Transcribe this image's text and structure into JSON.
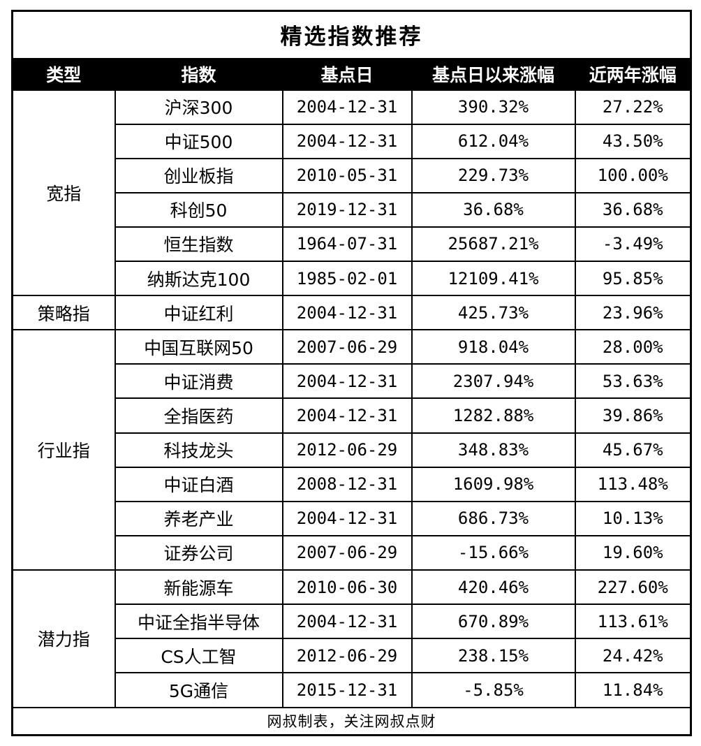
{
  "title": "精选指数推荐",
  "footer": "网叔制表，关注网叔点财",
  "header": {
    "columns": [
      "类型",
      "指数",
      "基点日",
      "基点日以来涨幅",
      "近两年涨幅"
    ]
  },
  "groups": [
    {
      "type": "宽指",
      "rows": [
        {
          "index": "沪深300",
          "base_date": "2004-12-31",
          "gain_since_base": "390.32%",
          "gain_two_years": "27.22%"
        },
        {
          "index": "中证500",
          "base_date": "2004-12-31",
          "gain_since_base": "612.04%",
          "gain_two_years": "43.50%"
        },
        {
          "index": "创业板指",
          "base_date": "2010-05-31",
          "gain_since_base": "229.73%",
          "gain_two_years": "100.00%"
        },
        {
          "index": "科创50",
          "base_date": "2019-12-31",
          "gain_since_base": "36.68%",
          "gain_two_years": "36.68%"
        },
        {
          "index": "恒生指数",
          "base_date": "1964-07-31",
          "gain_since_base": "25687.21%",
          "gain_two_years": "-3.49%"
        },
        {
          "index": "纳斯达克100",
          "base_date": "1985-02-01",
          "gain_since_base": "12109.41%",
          "gain_two_years": "95.85%"
        }
      ]
    },
    {
      "type": "策略指",
      "rows": [
        {
          "index": "中证红利",
          "base_date": "2004-12-31",
          "gain_since_base": "425.73%",
          "gain_two_years": "23.96%"
        }
      ]
    },
    {
      "type": "行业指",
      "rows": [
        {
          "index": "中国互联网50",
          "base_date": "2007-06-29",
          "gain_since_base": "918.04%",
          "gain_two_years": "28.00%"
        },
        {
          "index": "中证消费",
          "base_date": "2004-12-31",
          "gain_since_base": "2307.94%",
          "gain_two_years": "53.63%"
        },
        {
          "index": "全指医药",
          "base_date": "2004-12-31",
          "gain_since_base": "1282.88%",
          "gain_two_years": "39.86%"
        },
        {
          "index": "科技龙头",
          "base_date": "2012-06-29",
          "gain_since_base": "348.83%",
          "gain_two_years": "45.67%"
        },
        {
          "index": "中证白酒",
          "base_date": "2008-12-31",
          "gain_since_base": "1609.98%",
          "gain_two_years": "113.48%"
        },
        {
          "index": "养老产业",
          "base_date": "2004-12-31",
          "gain_since_base": "686.73%",
          "gain_two_years": "10.13%"
        },
        {
          "index": "证券公司",
          "base_date": "2007-06-29",
          "gain_since_base": "-15.66%",
          "gain_two_years": "19.60%"
        }
      ]
    },
    {
      "type": "潜力指",
      "rows": [
        {
          "index": "新能源车",
          "base_date": "2010-06-30",
          "gain_since_base": "420.46%",
          "gain_two_years": "227.60%"
        },
        {
          "index": "中证全指半导体",
          "base_date": "2004-12-31",
          "gain_since_base": "670.89%",
          "gain_two_years": "113.61%"
        },
        {
          "index": "CS人工智",
          "base_date": "2012-06-29",
          "gain_since_base": "238.15%",
          "gain_two_years": "24.42%"
        },
        {
          "index": "5G通信",
          "base_date": "2015-12-31",
          "gain_since_base": "-5.85%",
          "gain_two_years": "11.84%"
        }
      ]
    }
  ]
}
